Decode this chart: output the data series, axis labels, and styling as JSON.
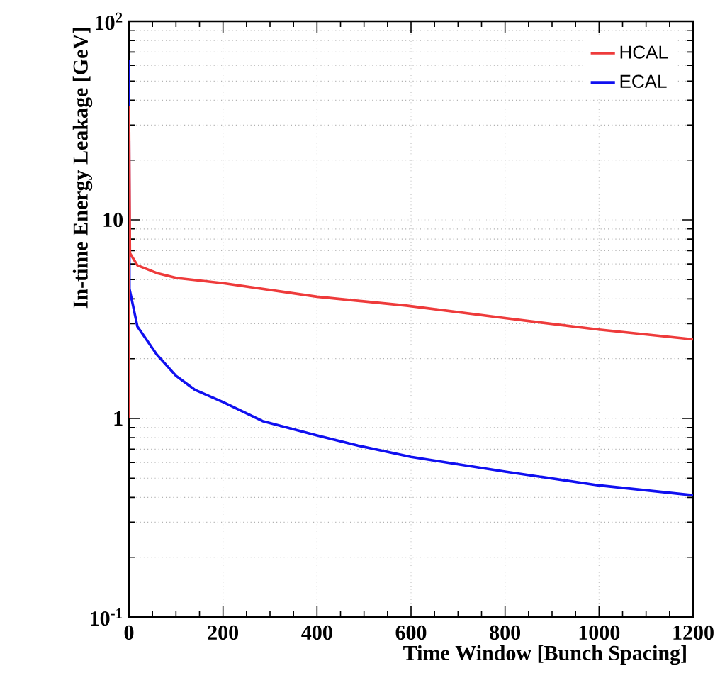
{
  "chart_data": {
    "type": "line",
    "xlabel": "Time Window [Bunch Spacing]",
    "ylabel": "In-time Energy Leakage [GeV]",
    "xlim": [
      0,
      1200
    ],
    "ylim": [
      0.1,
      100
    ],
    "log": "y",
    "grid": true,
    "legend": "top right",
    "xticks": [
      0,
      200,
      400,
      600,
      800,
      1000,
      1200
    ],
    "yticks": [
      {
        "value": 0.1,
        "label": "10$^{-1}$"
      },
      1,
      10,
      {
        "value": 100,
        "label": "10$^{2}$"
      }
    ],
    "series": [
      {
        "name": "HCAL",
        "color": "#ee3b3b",
        "x": [
          0,
          0,
          2,
          18,
          59,
          100,
          200,
          400,
          590,
          800,
          1000,
          1200
        ],
        "values": [
          1,
          37,
          6.8,
          5.9,
          5.4,
          5.1,
          4.8,
          4.1,
          3.7,
          3.2,
          2.8,
          2.5
        ]
      },
      {
        "name": "ECAL",
        "color": "#1010f0",
        "x": [
          0,
          0,
          1,
          18,
          59,
          100,
          141,
          200,
          284,
          400,
          487,
          600,
          800,
          1000,
          1200
        ],
        "values": [
          1,
          63,
          4.5,
          2.9,
          2.1,
          1.64,
          1.39,
          1.21,
          0.97,
          0.82,
          0.73,
          0.64,
          0.54,
          0.46,
          0.41
        ]
      }
    ]
  }
}
